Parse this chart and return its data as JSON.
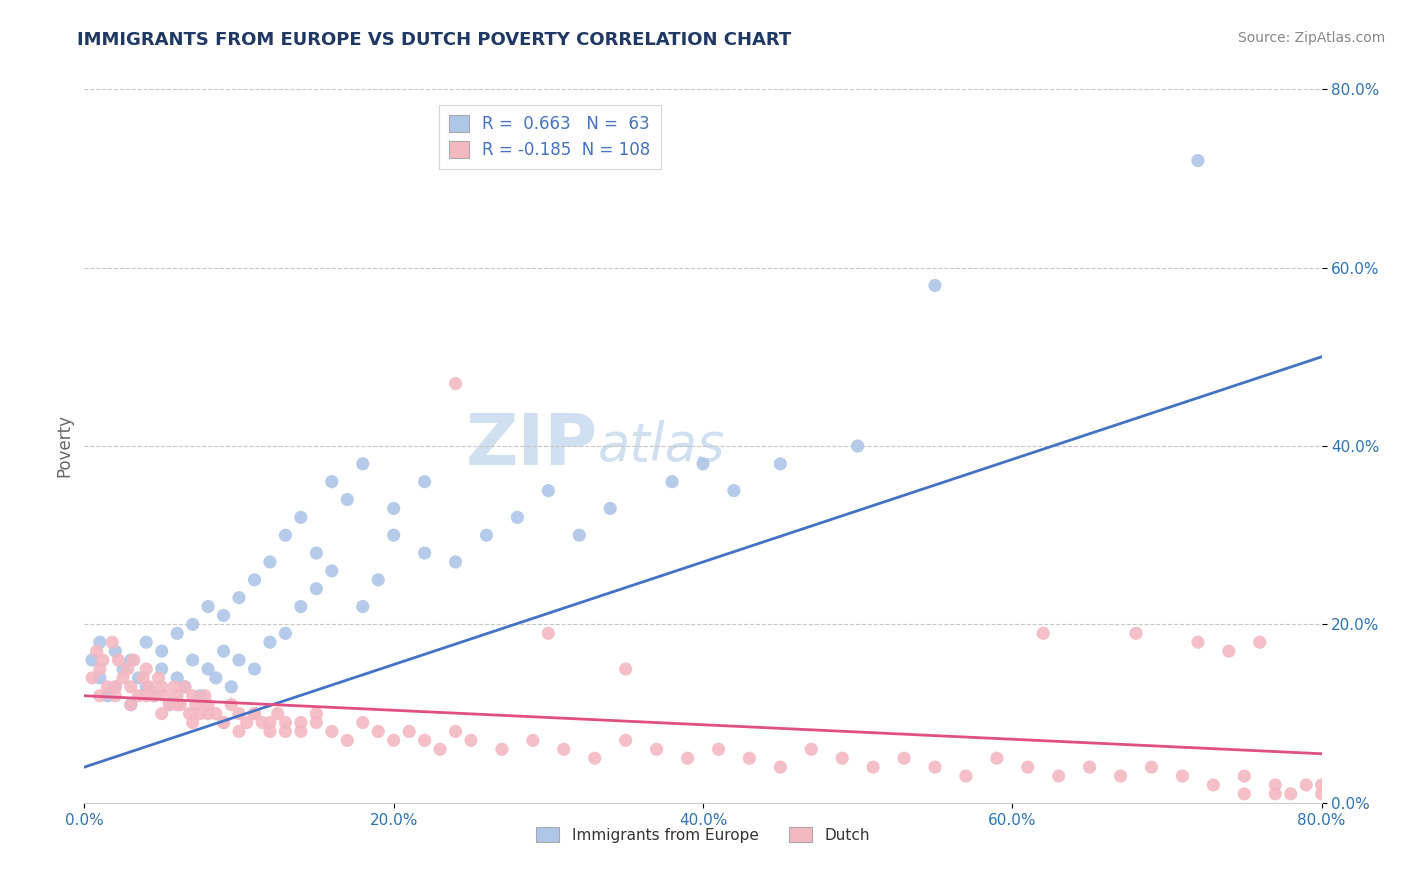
{
  "title": "IMMIGRANTS FROM EUROPE VS DUTCH POVERTY CORRELATION CHART",
  "source_text": "Source: ZipAtlas.com",
  "watermark_zip": "ZIP",
  "watermark_atlas": "atlas",
  "ylabel_label": "Poverty",
  "xlim": [
    0.0,
    0.8
  ],
  "ylim": [
    0.0,
    0.8
  ],
  "xtick_vals": [
    0.0,
    0.2,
    0.4,
    0.6,
    0.8
  ],
  "ytick_vals": [
    0.0,
    0.2,
    0.4,
    0.6,
    0.8
  ],
  "legend_entries": [
    {
      "label": "Immigrants from Europe",
      "color": "#aec6e8",
      "R": "0.663",
      "N": "63"
    },
    {
      "label": "Dutch",
      "color": "#f4b8c1",
      "R": "-0.185",
      "N": "108"
    }
  ],
  "blue_scatter_x": [
    0.01,
    0.005,
    0.015,
    0.02,
    0.01,
    0.025,
    0.03,
    0.02,
    0.035,
    0.04,
    0.03,
    0.045,
    0.05,
    0.04,
    0.055,
    0.06,
    0.05,
    0.065,
    0.07,
    0.06,
    0.075,
    0.08,
    0.07,
    0.085,
    0.09,
    0.08,
    0.095,
    0.1,
    0.09,
    0.11,
    0.1,
    0.12,
    0.11,
    0.13,
    0.12,
    0.14,
    0.13,
    0.15,
    0.14,
    0.16,
    0.15,
    0.17,
    0.18,
    0.16,
    0.19,
    0.2,
    0.18,
    0.22,
    0.2,
    0.24,
    0.22,
    0.26,
    0.28,
    0.3,
    0.32,
    0.34,
    0.38,
    0.4,
    0.42,
    0.45,
    0.5,
    0.55,
    0.72
  ],
  "blue_scatter_y": [
    0.14,
    0.16,
    0.12,
    0.13,
    0.18,
    0.15,
    0.11,
    0.17,
    0.14,
    0.13,
    0.16,
    0.12,
    0.15,
    0.18,
    0.11,
    0.14,
    0.17,
    0.13,
    0.16,
    0.19,
    0.12,
    0.15,
    0.2,
    0.14,
    0.17,
    0.22,
    0.13,
    0.16,
    0.21,
    0.15,
    0.23,
    0.18,
    0.25,
    0.19,
    0.27,
    0.22,
    0.3,
    0.24,
    0.32,
    0.26,
    0.28,
    0.34,
    0.22,
    0.36,
    0.25,
    0.3,
    0.38,
    0.28,
    0.33,
    0.27,
    0.36,
    0.3,
    0.32,
    0.35,
    0.3,
    0.33,
    0.36,
    0.38,
    0.35,
    0.38,
    0.4,
    0.58,
    0.72
  ],
  "pink_scatter_x": [
    0.005,
    0.008,
    0.01,
    0.012,
    0.015,
    0.018,
    0.02,
    0.022,
    0.025,
    0.028,
    0.03,
    0.032,
    0.035,
    0.038,
    0.04,
    0.042,
    0.045,
    0.048,
    0.05,
    0.052,
    0.055,
    0.058,
    0.06,
    0.062,
    0.065,
    0.068,
    0.07,
    0.072,
    0.075,
    0.078,
    0.08,
    0.085,
    0.09,
    0.095,
    0.1,
    0.105,
    0.11,
    0.115,
    0.12,
    0.125,
    0.13,
    0.14,
    0.15,
    0.16,
    0.17,
    0.18,
    0.19,
    0.2,
    0.21,
    0.22,
    0.23,
    0.24,
    0.25,
    0.27,
    0.29,
    0.31,
    0.33,
    0.35,
    0.37,
    0.39,
    0.41,
    0.43,
    0.45,
    0.47,
    0.49,
    0.51,
    0.53,
    0.55,
    0.57,
    0.59,
    0.61,
    0.63,
    0.65,
    0.67,
    0.69,
    0.71,
    0.73,
    0.75,
    0.77,
    0.01,
    0.02,
    0.03,
    0.04,
    0.05,
    0.06,
    0.07,
    0.08,
    0.09,
    0.1,
    0.11,
    0.12,
    0.13,
    0.14,
    0.15,
    0.24,
    0.3,
    0.35,
    0.62,
    0.68,
    0.72,
    0.74,
    0.76,
    0.78,
    0.8,
    0.79,
    0.75,
    0.77,
    0.8
  ],
  "pink_scatter_y": [
    0.14,
    0.17,
    0.15,
    0.16,
    0.13,
    0.18,
    0.12,
    0.16,
    0.14,
    0.15,
    0.13,
    0.16,
    0.12,
    0.14,
    0.15,
    0.13,
    0.12,
    0.14,
    0.13,
    0.12,
    0.11,
    0.13,
    0.12,
    0.11,
    0.13,
    0.1,
    0.12,
    0.11,
    0.1,
    0.12,
    0.11,
    0.1,
    0.09,
    0.11,
    0.1,
    0.09,
    0.1,
    0.09,
    0.08,
    0.1,
    0.09,
    0.08,
    0.09,
    0.08,
    0.07,
    0.09,
    0.08,
    0.07,
    0.08,
    0.07,
    0.06,
    0.08,
    0.07,
    0.06,
    0.07,
    0.06,
    0.05,
    0.07,
    0.06,
    0.05,
    0.06,
    0.05,
    0.04,
    0.06,
    0.05,
    0.04,
    0.05,
    0.04,
    0.03,
    0.05,
    0.04,
    0.03,
    0.04,
    0.03,
    0.04,
    0.03,
    0.02,
    0.03,
    0.02,
    0.12,
    0.13,
    0.11,
    0.12,
    0.1,
    0.11,
    0.09,
    0.1,
    0.09,
    0.08,
    0.1,
    0.09,
    0.08,
    0.09,
    0.1,
    0.47,
    0.19,
    0.15,
    0.19,
    0.19,
    0.18,
    0.17,
    0.18,
    0.01,
    0.01,
    0.02,
    0.01,
    0.01,
    0.02
  ],
  "blue_line_x": [
    0.0,
    0.8
  ],
  "blue_line_y": [
    0.04,
    0.5
  ],
  "pink_line_x": [
    0.0,
    0.8
  ],
  "pink_line_y": [
    0.12,
    0.055
  ],
  "blue_line_color": "#4472c4",
  "pink_line_color": "#e05080",
  "title_color": "#1f3864",
  "title_fontsize": 13,
  "source_fontsize": 10,
  "watermark_color": "#d0e0f0",
  "watermark_fontsize_big": 52,
  "watermark_fontsize_small": 38,
  "legend_fontsize": 12,
  "axis_tick_color": "#2e74b5",
  "grid_color": "#c8c8c8",
  "background_color": "#ffffff"
}
